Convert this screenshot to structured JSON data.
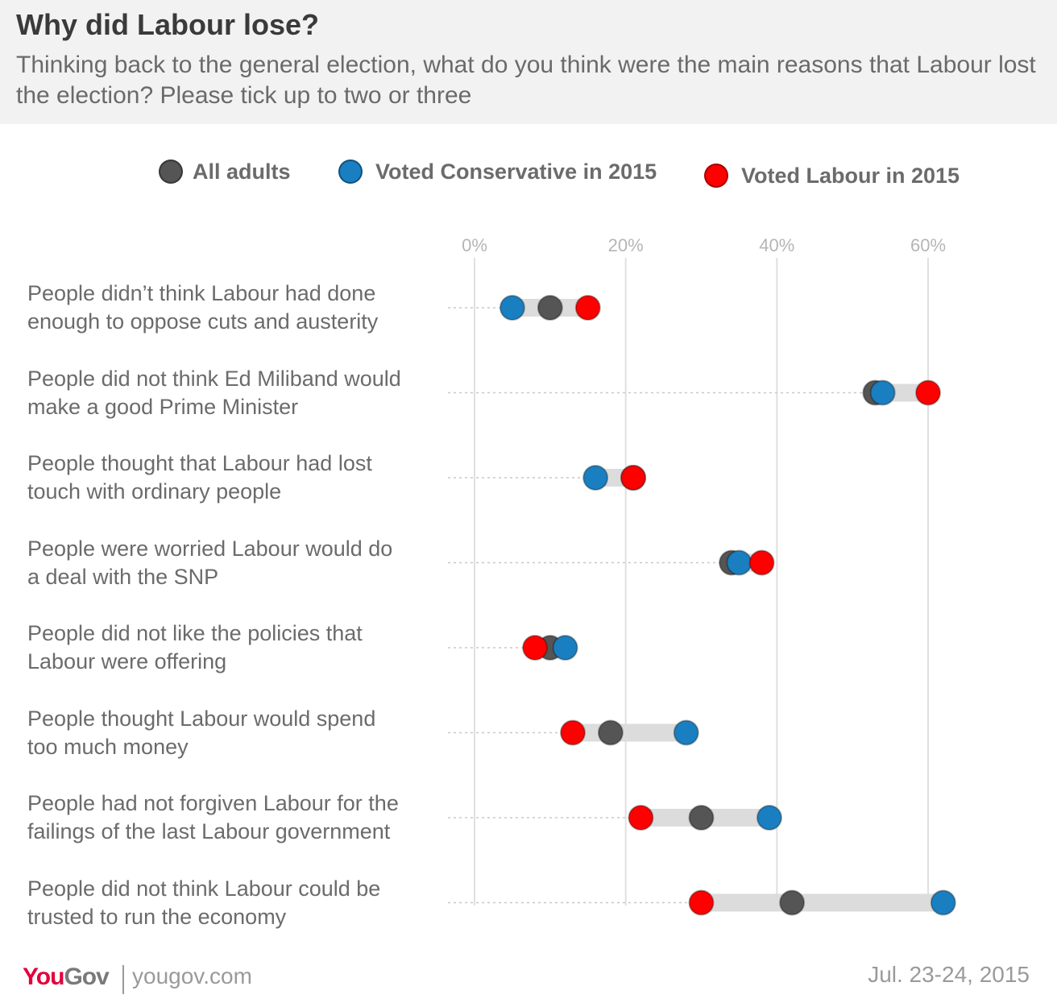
{
  "header": {
    "title": "Why did Labour lose?",
    "subtitle": "Thinking back to the general election, what do you think were the main reasons that Labour lost the election? Please tick up to two or three"
  },
  "chart_data": {
    "type": "dot-range",
    "x_ticks": [
      "0%",
      "20%",
      "40%",
      "60%"
    ],
    "xlim": [
      0,
      60
    ],
    "grid": true,
    "legend": {
      "placement": "top",
      "entries": [
        {
          "name": "All adults",
          "color": "#555555"
        },
        {
          "name": "Voted Conservative in 2015",
          "color": "#1a7fc1"
        },
        {
          "name": "Voted Labour in 2015",
          "color": "#ff0000"
        }
      ]
    },
    "categories": [
      "People didn't think Labour had done enough to oppose cuts and austerity",
      "People did not think Ed Miliband would make a good Prime Minister",
      "People thought that Labour had lost touch with ordinary people",
      "People were worried Labour would do a deal with the SNP",
      "People did not like the policies that Labour were offering",
      "People thought Labour would spend too much money",
      "People had not forgiven Labour for the failings of the last Labour government",
      "People did not think Labour could be trusted to run the economy"
    ],
    "category_lines": [
      [
        "People didn’t think Labour had done",
        "enough to oppose cuts and austerity"
      ],
      [
        "People did not think Ed Miliband would",
        "make a good Prime Minister"
      ],
      [
        "People thought that Labour had lost",
        "touch with ordinary people"
      ],
      [
        "People were worried Labour would do",
        "a deal with the SNP"
      ],
      [
        "People did not like the policies that",
        "Labour were offering"
      ],
      [
        "People thought Labour would spend",
        "too much money"
      ],
      [
        "People had not forgiven Labour for the",
        "failings of the last Labour government"
      ],
      [
        "People did not think Labour could be",
        "trusted to run the economy"
      ]
    ],
    "series": [
      {
        "name": "All adults",
        "color": "#555555",
        "values": [
          10,
          53,
          21,
          34,
          10,
          18,
          30,
          42
        ]
      },
      {
        "name": "Voted Conservative in 2015",
        "color": "#1a7fc1",
        "values": [
          5,
          54,
          16,
          35,
          12,
          28,
          39,
          62
        ]
      },
      {
        "name": "Voted Labour in 2015",
        "color": "#ff0000",
        "values": [
          15,
          60,
          21,
          38,
          8,
          13,
          22,
          30
        ]
      }
    ]
  },
  "footer": {
    "logo_you": "You",
    "logo_gov": "Gov",
    "website": "yougov.com",
    "date": "Jul. 23-24, 2015"
  }
}
